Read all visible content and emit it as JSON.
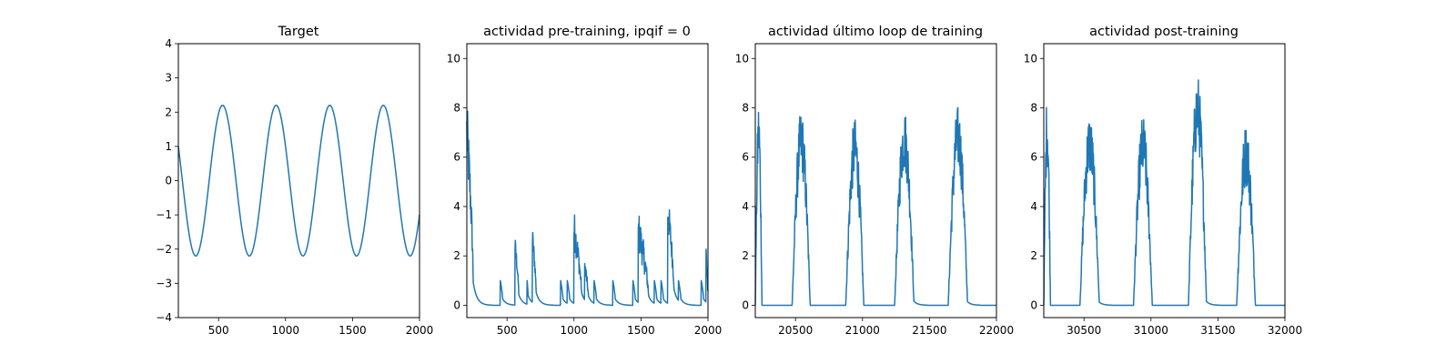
{
  "chart_data": [
    {
      "type": "line",
      "title": "Target",
      "xlim": [
        200,
        2000
      ],
      "ylim": [
        -4,
        4
      ],
      "xticks": [
        500,
        1000,
        1500,
        2000
      ],
      "yticks": [
        -4,
        -3,
        -2,
        -1,
        0,
        1,
        2,
        3,
        4
      ],
      "series_color": "#1f77b4",
      "series": [
        {
          "kind": "sine",
          "amplitude": 2.2,
          "period": 400,
          "peak_at": 530,
          "x_start": 200,
          "x_end": 2000,
          "samples": 600,
          "values": [
            [
              200,
              1.0
            ],
            [
              330,
              -2.2
            ],
            [
              530,
              2.2
            ],
            [
              730,
              -2.2
            ],
            [
              930,
              2.2
            ],
            [
              1130,
              -2.2
            ],
            [
              1330,
              2.2
            ],
            [
              1530,
              -2.2
            ],
            [
              1730,
              2.2
            ],
            [
              1930,
              -2.2
            ],
            [
              2000,
              -1.1
            ]
          ]
        }
      ]
    },
    {
      "type": "line",
      "title": "actividad pre-training, ipqif = 0",
      "xlim": [
        200,
        2000
      ],
      "ylim": [
        -0.5,
        10.6
      ],
      "xticks": [
        500,
        1000,
        1500,
        2000
      ],
      "yticks": [
        0,
        2,
        4,
        6,
        8,
        10
      ],
      "series_color": "#1f77b4",
      "series": [
        {
          "kind": "spiky",
          "baseline": 0,
          "bursts": [
            {
              "start": 200,
              "end": 250,
              "peak": 7.0,
              "noise": 1.5
            },
            {
              "start": 450,
              "end": 470,
              "peak": 1.0,
              "noise": 0
            },
            {
              "start": 560,
              "end": 590,
              "peak": 2.4,
              "noise": 0.4
            },
            {
              "start": 650,
              "end": 660,
              "peak": 1.0,
              "noise": 0
            },
            {
              "start": 690,
              "end": 720,
              "peak": 2.7,
              "noise": 0.5
            },
            {
              "start": 900,
              "end": 920,
              "peak": 1.0,
              "noise": 0
            },
            {
              "start": 950,
              "end": 970,
              "peak": 1.0,
              "noise": 0
            },
            {
              "start": 1000,
              "end": 1060,
              "peak": 3.1,
              "noise": 0.8
            },
            {
              "start": 1080,
              "end": 1110,
              "peak": 1.6,
              "noise": 0.4
            },
            {
              "start": 1150,
              "end": 1170,
              "peak": 1.0,
              "noise": 0
            },
            {
              "start": 1290,
              "end": 1310,
              "peak": 1.0,
              "noise": 0
            },
            {
              "start": 1440,
              "end": 1460,
              "peak": 1.0,
              "noise": 0
            },
            {
              "start": 1480,
              "end": 1560,
              "peak": 3.0,
              "noise": 0.9
            },
            {
              "start": 1600,
              "end": 1620,
              "peak": 1.0,
              "noise": 0
            },
            {
              "start": 1650,
              "end": 1670,
              "peak": 1.0,
              "noise": 0
            },
            {
              "start": 1700,
              "end": 1750,
              "peak": 3.8,
              "noise": 0.8
            },
            {
              "start": 1780,
              "end": 1800,
              "peak": 1.0,
              "noise": 0
            },
            {
              "start": 1950,
              "end": 1970,
              "peak": 1.0,
              "noise": 0
            },
            {
              "start": 1985,
              "end": 2000,
              "peak": 2.2,
              "noise": 0.4
            }
          ]
        }
      ]
    },
    {
      "type": "line",
      "title": "actividad último loop de training",
      "xlim": [
        20200,
        22000
      ],
      "ylim": [
        -0.5,
        10.6
      ],
      "xticks": [
        20500,
        21000,
        21500,
        22000
      ],
      "yticks": [
        0,
        2,
        4,
        6,
        8,
        10
      ],
      "series_color": "#1f77b4",
      "series": [
        {
          "kind": "humps",
          "baseline": 0,
          "bursts": [
            {
              "start": 20200,
              "end": 20250,
              "peak": 7.0,
              "noise": 1.3
            },
            {
              "start": 20475,
              "end": 20610,
              "peak": 6.6,
              "noise": 1.3
            },
            {
              "start": 20875,
              "end": 21010,
              "peak": 6.3,
              "noise": 1.3
            },
            {
              "start": 21240,
              "end": 21385,
              "peak": 6.7,
              "noise": 1.3
            },
            {
              "start": 21640,
              "end": 21785,
              "peak": 6.8,
              "noise": 1.3
            }
          ]
        }
      ]
    },
    {
      "type": "line",
      "title": "actividad post-training",
      "xlim": [
        30200,
        32000
      ],
      "ylim": [
        -0.5,
        10.6
      ],
      "xticks": [
        30500,
        31000,
        31500,
        32000
      ],
      "yticks": [
        0,
        2,
        4,
        6,
        8,
        10
      ],
      "series_color": "#1f77b4",
      "series": [
        {
          "kind": "humps",
          "baseline": 0,
          "bursts": [
            {
              "start": 30200,
              "end": 30250,
              "peak": 7.1,
              "noise": 1.5
            },
            {
              "start": 30470,
              "end": 30615,
              "peak": 6.5,
              "noise": 1.3
            },
            {
              "start": 30870,
              "end": 31010,
              "peak": 6.4,
              "noise": 1.3
            },
            {
              "start": 31280,
              "end": 31415,
              "peak": 7.9,
              "noise": 1.5
            },
            {
              "start": 31640,
              "end": 31780,
              "peak": 6.1,
              "noise": 1.3
            }
          ]
        }
      ]
    }
  ]
}
